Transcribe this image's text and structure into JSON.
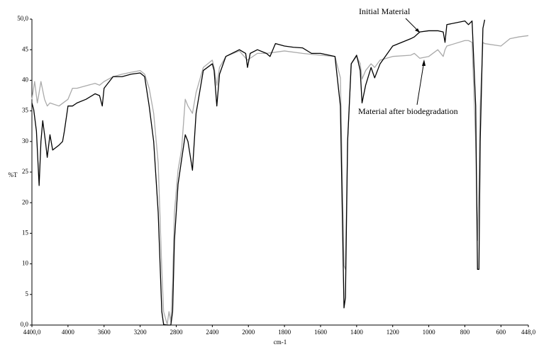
{
  "chart_data": {
    "type": "line",
    "xlabel": "cm-1",
    "ylabel": "%T",
    "xlim": [
      4400,
      448
    ],
    "ylim": [
      0,
      50
    ],
    "xscale": {
      "break": 2000,
      "expansion": 2
    },
    "xticks": [
      {
        "value": 4400,
        "label": "4400,0"
      },
      4000,
      3600,
      3200,
      2800,
      2400,
      2000,
      1800,
      1600,
      1400,
      1200,
      1000,
      800,
      600,
      {
        "value": 448,
        "label": "448,0"
      }
    ],
    "yticks": [
      {
        "value": 0,
        "label": "0,0"
      },
      5,
      10,
      15,
      20,
      25,
      30,
      35,
      40,
      45,
      {
        "value": 50,
        "label": "50,0"
      }
    ],
    "series": [
      {
        "name": "Initial Material",
        "color": "#000000",
        "x": [
          4400,
          4380,
          4350,
          4320,
          4300,
          4280,
          4250,
          4230,
          4200,
          4170,
          4100,
          4060,
          4040,
          4000,
          3950,
          3900,
          3800,
          3700,
          3650,
          3620,
          3600,
          3500,
          3400,
          3300,
          3200,
          3150,
          3100,
          3050,
          3000,
          2960,
          2940,
          2900,
          2860,
          2840,
          2820,
          2780,
          2740,
          2700,
          2670,
          2620,
          2580,
          2500,
          2400,
          2380,
          2350,
          2320,
          2250,
          2100,
          2030,
          2010,
          1990,
          1950,
          1900,
          1880,
          1850,
          1800,
          1750,
          1700,
          1650,
          1600,
          1520,
          1490,
          1470,
          1462,
          1450,
          1430,
          1400,
          1380,
          1370,
          1350,
          1320,
          1300,
          1270,
          1200,
          1100,
          1080,
          1050,
          1000,
          950,
          920,
          910,
          900,
          800,
          780,
          760,
          740,
          730,
          722,
          715,
          700,
          690
        ],
        "values": [
          36.3,
          35.2,
          31.7,
          22.8,
          30,
          33.4,
          30,
          27.4,
          31.1,
          28.6,
          29.4,
          30,
          31.7,
          35.8,
          35.8,
          36.3,
          36.9,
          37.8,
          37.5,
          35.8,
          38.7,
          40.6,
          40.6,
          41,
          41.2,
          40.6,
          35.8,
          30,
          18.4,
          2.2,
          0.1,
          0,
          0,
          2.2,
          13.8,
          23,
          27.1,
          31.1,
          30,
          25.3,
          34.6,
          41.6,
          42.7,
          41.6,
          35.8,
          41,
          43.9,
          45,
          44.4,
          42.1,
          44.4,
          45,
          44.4,
          43.9,
          46,
          45.6,
          45.4,
          45.3,
          44.4,
          44.4,
          43.9,
          35.8,
          2.8,
          4.5,
          30,
          42.7,
          44.1,
          41.6,
          36.3,
          39.2,
          42.1,
          40.4,
          42.7,
          45.6,
          46.8,
          47.1,
          47.9,
          48.1,
          48.1,
          47.9,
          46.2,
          49.1,
          49.7,
          49.1,
          49.7,
          35.8,
          9.1,
          9.1,
          30,
          48.5,
          49.9
        ]
      },
      {
        "name": "Material after biodegradation",
        "color": "#aaaaaa",
        "x": [
          4400,
          4370,
          4340,
          4320,
          4300,
          4260,
          4230,
          4200,
          4100,
          4000,
          3950,
          3900,
          3800,
          3700,
          3650,
          3600,
          3500,
          3400,
          3300,
          3200,
          3150,
          3100,
          3050,
          3000,
          2960,
          2940,
          2900,
          2880,
          2860,
          2840,
          2820,
          2780,
          2740,
          2700,
          2670,
          2620,
          2580,
          2500,
          2400,
          2380,
          2350,
          2320,
          2250,
          2100,
          2010,
          1950,
          1900,
          1800,
          1700,
          1600,
          1520,
          1490,
          1470,
          1462,
          1450,
          1430,
          1400,
          1380,
          1370,
          1350,
          1320,
          1300,
          1270,
          1200,
          1100,
          1080,
          1050,
          1000,
          950,
          920,
          910,
          900,
          800,
          780,
          760,
          740,
          730,
          722,
          715,
          700,
          690,
          600,
          550,
          500,
          448
        ],
        "values": [
          36.9,
          39.8,
          36.3,
          38,
          39.8,
          36.9,
          35.8,
          36.3,
          35.8,
          36.9,
          38.7,
          38.7,
          39.1,
          39.5,
          39.2,
          39.8,
          40.6,
          41,
          41.3,
          41.6,
          41,
          38.7,
          34.6,
          26.5,
          9.1,
          2.2,
          0.1,
          2.2,
          0.5,
          6.8,
          18.4,
          25.3,
          28.8,
          36.9,
          35.8,
          34.6,
          38,
          42.1,
          43.3,
          42.1,
          39.2,
          42.1,
          43.9,
          44.8,
          43.3,
          44.4,
          44.4,
          44.8,
          44.4,
          44.1,
          43.9,
          40.4,
          9.7,
          9.1,
          30,
          42.7,
          43.9,
          42.7,
          40.2,
          41.6,
          42.7,
          42.1,
          43.3,
          43.9,
          44.1,
          44.4,
          43.6,
          43.9,
          45,
          43.9,
          45,
          45.6,
          46.5,
          46.5,
          46.2,
          30,
          13.8,
          23,
          35.8,
          46.2,
          46,
          45.6,
          46.8,
          47.1,
          47.3
        ]
      }
    ]
  }
}
